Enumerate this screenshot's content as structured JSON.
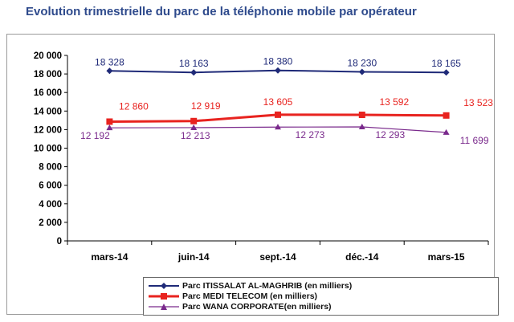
{
  "header": {
    "title": "Evolution trimestrielle du parc de la téléphonie mobile par opérateur"
  },
  "chart_data": {
    "type": "line",
    "title": "Evolution trimestrielle du parc de la téléphonie mobile par opérateur",
    "categories": [
      "mars-14",
      "juin-14",
      "sept.-14",
      "déc.-14",
      "mars-15"
    ],
    "ylim": [
      0,
      20000
    ],
    "yticks": [
      0,
      2000,
      4000,
      6000,
      8000,
      10000,
      12000,
      14000,
      16000,
      18000,
      20000
    ],
    "ytick_labels": [
      "0",
      "2 000",
      "4 000",
      "6 000",
      "8 000",
      "10 000",
      "12 000",
      "14 000",
      "16 000",
      "18 000",
      "20 000"
    ],
    "grid": false,
    "legend_position": "bottom",
    "series": [
      {
        "name": "Parc ITISSALAT AL-MAGHRIB (en milliers)",
        "values": [
          18328,
          18163,
          18380,
          18230,
          18165
        ],
        "labels": [
          "18 328",
          "18 163",
          "18 380",
          "18 230",
          "18 165"
        ],
        "color": "#1f2a78",
        "marker": "diamond"
      },
      {
        "name": "Parc MEDI TELECOM (en milliers)",
        "values": [
          12860,
          12919,
          13605,
          13592,
          13523
        ],
        "labels": [
          "12 860",
          "12 919",
          "13 605",
          "13 592",
          "13 523"
        ],
        "color": "#e8231f",
        "marker": "square"
      },
      {
        "name": "Parc WANA CORPORATE(en milliers)",
        "values": [
          12192,
          12213,
          12273,
          12293,
          11699
        ],
        "labels": [
          "12 192",
          "12 213",
          "12 273",
          "12 293",
          "11 699"
        ],
        "color": "#7a2a8c",
        "marker": "triangle"
      }
    ]
  }
}
